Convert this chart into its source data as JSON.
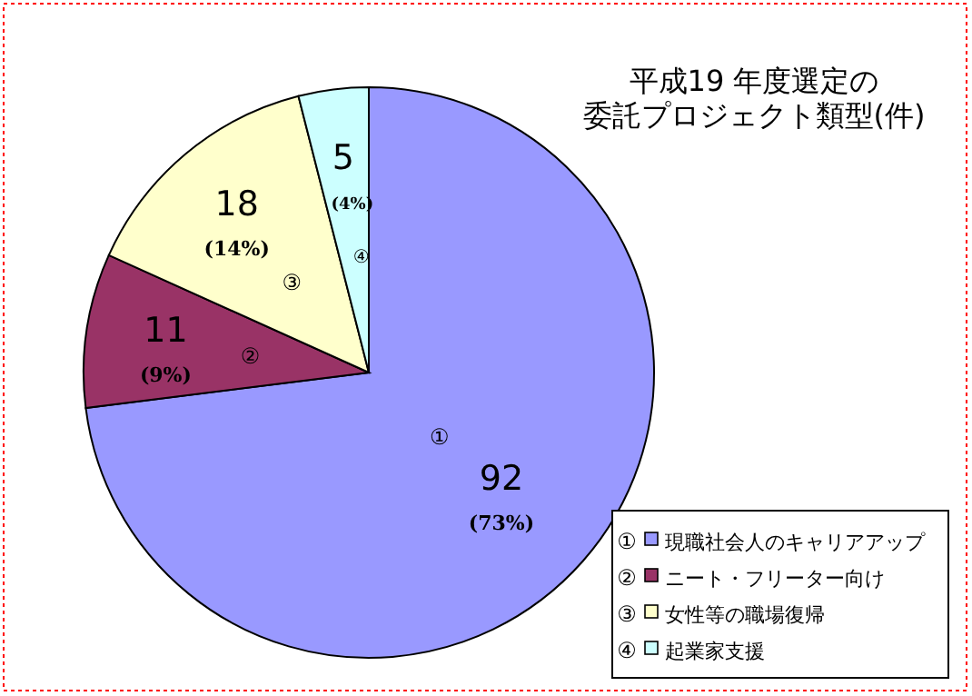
{
  "chart_data": {
    "type": "pie",
    "title": "平成19 年度選定の",
    "subtitle": "委託プロジェクト類型(件)",
    "categories": [
      "現職社会人のキャリアアップ",
      "ニート・フリーター向け",
      "女性等の職場復帰",
      "起業家支援"
    ],
    "values": [
      92,
      11,
      18,
      5
    ],
    "colors": [
      "#9999ff",
      "#993366",
      "#ffffcc",
      "#ccffff"
    ],
    "value_labels": [
      "92\n(73%)",
      "11\n(9%)",
      "18\n(14%)",
      "5\n(4%)"
    ],
    "annotations": [
      {
        "text": "①",
        "x": "現職社会人のキャリアアップ"
      },
      {
        "text": "②",
        "x": "ニート・フリーター向け"
      },
      {
        "text": "③",
        "x": "女性等の職場復帰"
      },
      {
        "text": "④",
        "x": "起業家支援"
      }
    ],
    "legend": "bottom right"
  }
}
